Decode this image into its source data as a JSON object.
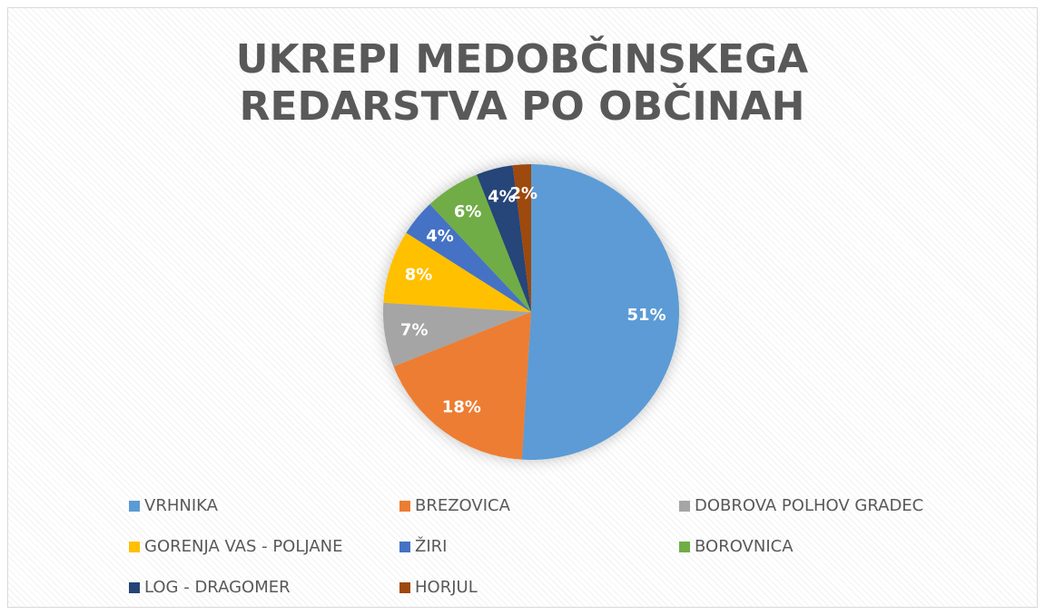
{
  "chart_data": {
    "type": "pie",
    "title": "UKREPI MEDOBČINSKEGA REDARSTVA PO OBČINAH",
    "categories": [
      "VRHNIKA",
      "BREZOVICA",
      "DOBROVA POLHOV GRADEC",
      "GORENJA VAS - POLJANE",
      "ŽIRI",
      "BOROVNICA",
      "LOG - DRAGOMER",
      "HORJUL"
    ],
    "values": [
      51,
      18,
      7,
      8,
      4,
      6,
      4,
      2
    ],
    "value_labels": [
      "51%",
      "18%",
      "7%",
      "8%",
      "4%",
      "6%",
      "4%",
      "2%"
    ],
    "colors": [
      "#5b9bd5",
      "#ed7d31",
      "#a5a5a5",
      "#ffc000",
      "#4472c4",
      "#70ad47",
      "#264478",
      "#9e480e"
    ],
    "legend": "bottom"
  }
}
